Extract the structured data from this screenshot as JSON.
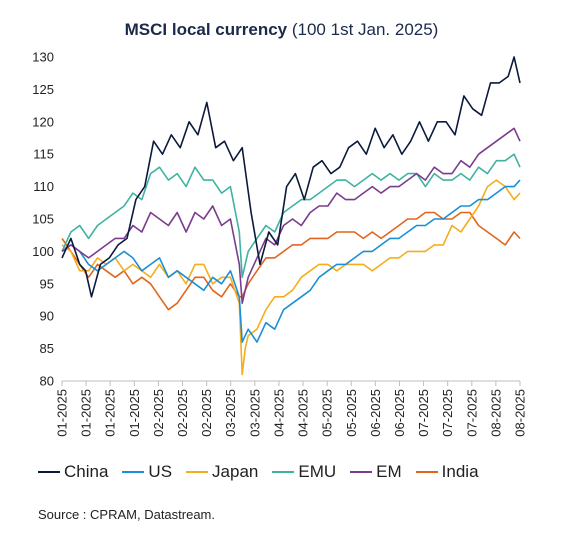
{
  "title": {
    "bold": "MSCI local currency",
    "rest": " (100 1st Jan. 2025)"
  },
  "source": "Source : CPRAM, Datastream.",
  "chart_data": {
    "type": "line",
    "ylim": [
      80,
      130
    ],
    "yticks": [
      80,
      85,
      90,
      95,
      100,
      105,
      110,
      115,
      120,
      125,
      130
    ],
    "xlim": [
      0,
      155
    ],
    "x_tick_labels": [
      "01-2025",
      "01-2025",
      "01-2025",
      "01-2025",
      "02-2025",
      "02-2025",
      "02-2025",
      "03-2025",
      "03-2025",
      "04-2025",
      "04-2025",
      "05-2025",
      "05-2025",
      "06-2025",
      "06-2025",
      "07-2025",
      "07-2025",
      "07-2025",
      "08-2025",
      "08-2025"
    ],
    "grid": false,
    "legend_position": "bottom",
    "series": [
      {
        "name": "China",
        "color": "#0b1a3c",
        "x": [
          0,
          3,
          6,
          8,
          10,
          13,
          16,
          19,
          22,
          25,
          28,
          31,
          34,
          37,
          40,
          43,
          46,
          49,
          52,
          55,
          58,
          61,
          64,
          67,
          70,
          73,
          76,
          79,
          82,
          85,
          88,
          91,
          94,
          97,
          100,
          103,
          106,
          109,
          112,
          115,
          118,
          121,
          124,
          127,
          130,
          133,
          136,
          139,
          142,
          145,
          148,
          151,
          153,
          155
        ],
        "y": [
          99,
          102,
          98,
          97,
          93,
          98,
          99,
          101,
          102,
          108,
          110,
          117,
          115,
          118,
          116,
          120,
          118,
          123,
          116,
          117,
          114,
          116,
          106,
          98,
          103,
          101,
          110,
          112,
          108,
          113,
          114,
          112,
          113,
          116,
          117,
          115,
          119,
          116,
          118,
          115,
          117,
          120,
          117,
          120,
          120,
          118,
          124,
          122,
          121,
          126,
          126,
          127,
          130,
          126
        ]
      },
      {
        "name": "US",
        "color": "#1b8fd6",
        "x": [
          0,
          3,
          6,
          9,
          12,
          15,
          18,
          21,
          24,
          27,
          30,
          33,
          36,
          39,
          42,
          45,
          48,
          51,
          54,
          57,
          60,
          61,
          63,
          66,
          69,
          72,
          75,
          78,
          81,
          84,
          87,
          90,
          93,
          96,
          99,
          102,
          105,
          108,
          111,
          114,
          117,
          120,
          123,
          126,
          129,
          132,
          135,
          138,
          141,
          144,
          147,
          150,
          153,
          155
        ],
        "y": [
          100,
          101,
          100,
          98,
          97,
          98,
          99,
          100,
          99,
          97,
          98,
          99,
          96,
          97,
          96,
          95,
          94,
          96,
          95,
          97,
          93,
          86,
          88,
          86,
          89,
          88,
          91,
          92,
          93,
          94,
          96,
          97,
          98,
          98,
          99,
          100,
          100,
          101,
          102,
          102,
          103,
          104,
          104,
          105,
          105,
          106,
          107,
          107,
          108,
          108,
          109,
          110,
          110,
          111
        ]
      },
      {
        "name": "Japan",
        "color": "#f5ad1c",
        "x": [
          0,
          3,
          6,
          9,
          12,
          15,
          18,
          21,
          24,
          27,
          30,
          33,
          36,
          39,
          42,
          45,
          48,
          51,
          54,
          57,
          60,
          61,
          62,
          63,
          66,
          69,
          72,
          75,
          78,
          81,
          84,
          87,
          90,
          93,
          96,
          99,
          102,
          105,
          108,
          111,
          114,
          117,
          120,
          123,
          126,
          129,
          132,
          135,
          138,
          141,
          144,
          147,
          150,
          153,
          155
        ],
        "y": [
          101,
          100,
          97,
          97,
          99,
          98,
          99,
          97,
          98,
          97,
          96,
          98,
          96,
          97,
          95,
          98,
          98,
          95,
          96,
          96,
          92,
          81,
          85,
          87,
          88,
          91,
          93,
          93,
          94,
          96,
          97,
          98,
          98,
          97,
          98,
          98,
          98,
          97,
          98,
          99,
          99,
          100,
          100,
          100,
          101,
          101,
          104,
          103,
          105,
          107,
          110,
          111,
          110,
          108,
          109
        ]
      },
      {
        "name": "EMU",
        "color": "#3fb3a0",
        "x": [
          0,
          3,
          6,
          9,
          12,
          15,
          18,
          21,
          24,
          27,
          30,
          33,
          36,
          39,
          42,
          45,
          48,
          51,
          54,
          57,
          60,
          61,
          63,
          66,
          69,
          72,
          75,
          78,
          81,
          84,
          87,
          90,
          93,
          96,
          99,
          102,
          105,
          108,
          111,
          114,
          117,
          120,
          123,
          126,
          129,
          132,
          135,
          138,
          141,
          144,
          147,
          150,
          153,
          155
        ],
        "y": [
          100,
          103,
          104,
          102,
          104,
          105,
          106,
          107,
          109,
          108,
          112,
          113,
          111,
          112,
          110,
          113,
          111,
          111,
          109,
          110,
          103,
          96,
          100,
          102,
          104,
          103,
          106,
          107,
          108,
          108,
          109,
          110,
          111,
          111,
          110,
          111,
          112,
          111,
          112,
          111,
          112,
          112,
          110,
          112,
          111,
          111,
          112,
          111,
          113,
          112,
          114,
          114,
          115,
          113
        ]
      },
      {
        "name": "EM",
        "color": "#7a3d8e",
        "x": [
          0,
          3,
          6,
          9,
          12,
          15,
          18,
          21,
          24,
          27,
          30,
          33,
          36,
          39,
          42,
          45,
          48,
          51,
          54,
          57,
          60,
          61,
          63,
          66,
          69,
          72,
          75,
          78,
          81,
          84,
          87,
          90,
          93,
          96,
          99,
          102,
          105,
          108,
          111,
          114,
          117,
          120,
          123,
          126,
          129,
          132,
          135,
          138,
          141,
          144,
          147,
          150,
          153,
          155
        ],
        "y": [
          100,
          101,
          100,
          99,
          100,
          101,
          102,
          102,
          104,
          103,
          106,
          105,
          104,
          106,
          103,
          106,
          105,
          107,
          104,
          105,
          98,
          92,
          96,
          99,
          102,
          101,
          104,
          105,
          104,
          106,
          107,
          107,
          109,
          108,
          108,
          109,
          110,
          109,
          110,
          110,
          111,
          112,
          111,
          113,
          112,
          112,
          114,
          113,
          115,
          116,
          117,
          118,
          119,
          117
        ]
      },
      {
        "name": "India",
        "color": "#e0661e",
        "x": [
          0,
          3,
          6,
          9,
          12,
          15,
          18,
          21,
          24,
          27,
          30,
          33,
          36,
          39,
          42,
          45,
          48,
          51,
          54,
          57,
          60,
          61,
          63,
          66,
          69,
          72,
          75,
          78,
          81,
          84,
          87,
          90,
          93,
          96,
          99,
          102,
          105,
          108,
          111,
          114,
          117,
          120,
          123,
          126,
          129,
          132,
          135,
          138,
          141,
          144,
          147,
          150,
          153,
          155
        ],
        "y": [
          102,
          100,
          98,
          96,
          98,
          97,
          96,
          97,
          95,
          96,
          95,
          93,
          91,
          92,
          94,
          96,
          96,
          94,
          93,
          95,
          93,
          93,
          95,
          97,
          99,
          99,
          100,
          101,
          101,
          102,
          102,
          102,
          103,
          103,
          103,
          102,
          103,
          102,
          103,
          104,
          105,
          105,
          106,
          106,
          105,
          105,
          106,
          106,
          104,
          103,
          102,
          101,
          103,
          102
        ]
      }
    ]
  }
}
